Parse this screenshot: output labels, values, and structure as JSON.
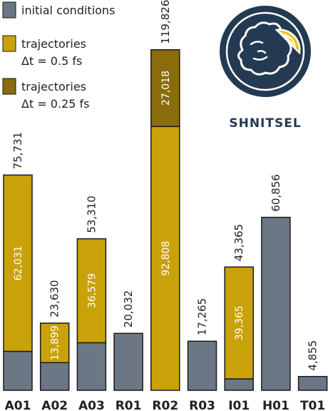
{
  "chart_data": {
    "type": "bar",
    "stacked": true,
    "categories": [
      "A01",
      "A02",
      "A03",
      "R01",
      "R02",
      "R03",
      "I01",
      "H01",
      "T01"
    ],
    "series": [
      {
        "name": "initial conditions",
        "color": "#6b7785",
        "values": [
          13700,
          9731,
          16731,
          20032,
          0,
          17265,
          4000,
          60856,
          4855
        ]
      },
      {
        "name": "trajectories Δt = 0.5 fs",
        "color": "#c9a20a",
        "values": [
          62031,
          13899,
          36579,
          0,
          92808,
          0,
          39365,
          0,
          0
        ]
      },
      {
        "name": "trajectories Δt = 0.25 fs",
        "color": "#8a6c0c",
        "values": [
          0,
          0,
          0,
          0,
          27018,
          0,
          0,
          0,
          0
        ]
      }
    ],
    "segment_labels": [
      {
        "category": "A01",
        "series": 1,
        "text": "62,031"
      },
      {
        "category": "A02",
        "series": 1,
        "text": "13,899"
      },
      {
        "category": "A03",
        "series": 1,
        "text": "36,579"
      },
      {
        "category": "R02",
        "series": 1,
        "text": "92,808"
      },
      {
        "category": "R02",
        "series": 2,
        "text": "27,018"
      },
      {
        "category": "I01",
        "series": 1,
        "text": "39,365"
      }
    ],
    "totals": [
      "75,731",
      "23,630",
      "53,310",
      "20,032",
      "119,826",
      "17,265",
      "43,365",
      "60,856",
      "4,855"
    ],
    "ylim": [
      0,
      122000
    ],
    "grid": false,
    "legend": {
      "position": "top-left",
      "entries": [
        {
          "lines": [
            "initial conditions"
          ],
          "color": "#6b7785"
        },
        {
          "lines": [
            "trajectories",
            "Δt = 0.5 fs"
          ],
          "color": "#c9a20a"
        },
        {
          "lines": [
            "trajectories",
            "Δt = 0.25 fs"
          ],
          "color": "#8a6c0c"
        }
      ]
    }
  },
  "logo": {
    "text": "SHNITSEL",
    "icon": "schnitzel-with-lemon-icon",
    "color": "#233a52",
    "accent": "#f4c21b"
  }
}
